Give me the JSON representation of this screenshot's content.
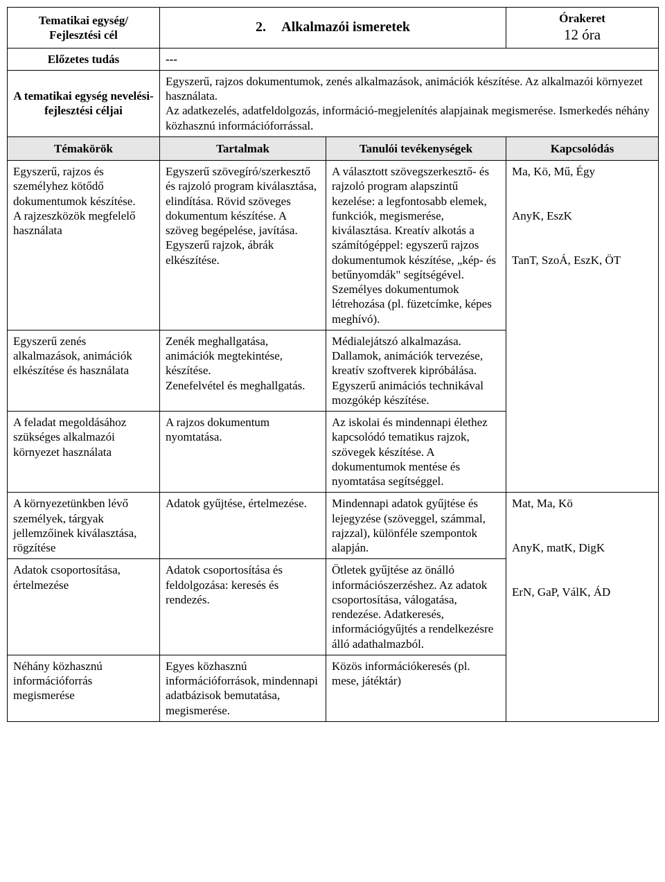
{
  "header": {
    "unit_label": "Tematikai egység/\nFejlesztési cél",
    "section_number": "2.",
    "section_title": "Alkalmazói ismeretek",
    "time_label": "Órakeret",
    "time_value": "12 óra",
    "prereq_label": "Előzetes tudás",
    "prereq_value": "---",
    "goals_label": "A tematikai egység nevelési-fejlesztési céljai",
    "goals_value": "Egyszerű, rajzos dokumentumok, zenés alkalmazások, animációk készítése. Az alkalmazói környezet használata.\nAz adatkezelés, adatfeldolgozás, információ-megjelenítés alapjainak megismerése. Ismerkedés néhány közhasznú információforrással."
  },
  "cols": {
    "c1": "Témakörök",
    "c2": "Tartalmak",
    "c3": "Tanulói tevékenységek",
    "c4": "Kapcsolódás"
  },
  "rows": {
    "r1": {
      "topic": "Egyszerű, rajzos és személyhez kötődő dokumentumok készítése.\nA rajzeszközök megfelelő használata",
      "content": "Egyszerű szövegíró/szerkesztő és rajzoló program kiválasztása, elindítása. Rövid szöveges dokumentum készítése. A szöveg begépelése, javítása.\nEgyszerű rajzok, ábrák elkészítése.",
      "activity": "A választott szövegszerkesztő- és rajzoló program alapszintű kezelése: a legfontosabb elemek, funkciók, megismerése, kiválasztása. Kreatív alkotás a számítógéppel: egyszerű rajzos dokumentumok készítése, „kép- és betűnyomdák\" segítségével.\nSzemélyes dokumentumok létrehozása (pl. füzetcímke, képes meghívó)."
    },
    "group1_link": "Ma, Kö, Mű, Égy\n\n\nAnyK, EszK\n\n\nTanT, SzoÁ, EszK, ÖT",
    "r2": {
      "topic": "Egyszerű zenés alkalmazások, animációk elkészítése és használata",
      "content": "Zenék meghallgatása, animációk megtekintése, készítése.\nZenefelvétel és meghallgatás.",
      "activity": "Médialejátszó alkalmazása. Dallamok, animációk tervezése, kreatív szoftverek kipróbálása.\nEgyszerű animációs technikával mozgókép készítése."
    },
    "r3": {
      "topic": "A feladat megoldásához szükséges alkalmazói környezet használata",
      "content": "A rajzos dokumentum nyomtatása.",
      "activity": "Az iskolai és mindennapi élethez kapcsolódó tematikus rajzok, szövegek készítése. A dokumentumok mentése és nyomtatása segítséggel."
    },
    "r4": {
      "topic": "A környezetünkben lévő személyek, tárgyak jellemzőinek kiválasztása, rögzítése",
      "content": "Adatok gyűjtése, értelmezése.",
      "activity": "Mindennapi adatok gyűjtése és lejegyzése (szöveggel, számmal, rajzzal), különféle szempontok alapján."
    },
    "group2_link": "Mat, Ma, Kö\n\n\nAnyK, matK, DigK\n\n\nErN, GaP, VálK, ÁD",
    "r5": {
      "topic": "Adatok csoportosítása, értelmezése",
      "content": "Adatok csoportosítása és feldolgozása: keresés és rendezés.",
      "activity": "Ötletek gyűjtése az önálló információszerzéshez. Az adatok csoportosítása, válogatása, rendezése. Adatkeresés, információgyűjtés a rendelkezésre álló adathalmazból."
    },
    "r6": {
      "topic": "Néhány közhasznú információforrás megismerése",
      "content": "Egyes közhasznú információforrások, mindennapi adatbázisok bemutatása, megismerése.",
      "activity": "Közös információkeresés (pl. mese, játéktár)"
    }
  }
}
